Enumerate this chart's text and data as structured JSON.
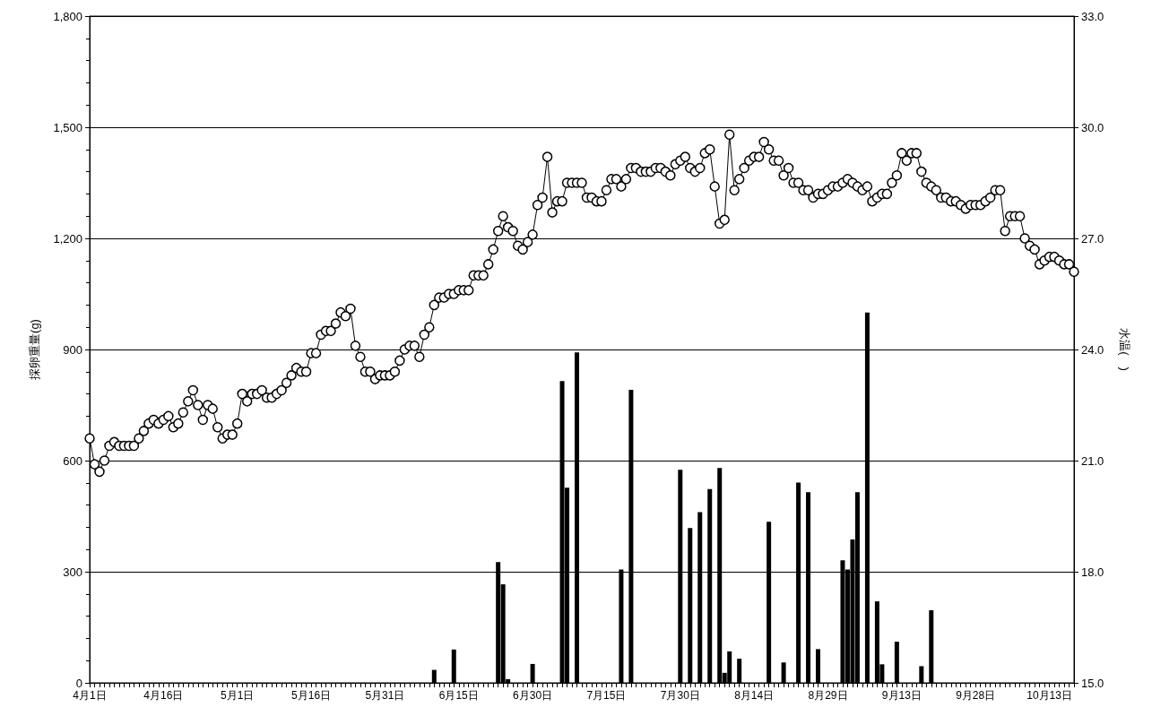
{
  "chart_data": {
    "type": "bar",
    "ylabel": "採卵重量(g)",
    "y2label": "水温(　)",
    "x": [
      "--04-01",
      "--04-02",
      "--04-03",
      "--04-04",
      "--04-05",
      "--04-06",
      "--04-07",
      "--04-08",
      "--04-09",
      "--04-10",
      "--04-11",
      "--04-12",
      "--04-13",
      "--04-14",
      "--04-15",
      "--04-16",
      "--04-17",
      "--04-18",
      "--04-19",
      "--04-20",
      "--04-21",
      "--04-22",
      "--04-23",
      "--04-24",
      "--04-25",
      "--04-26",
      "--04-27",
      "--04-28",
      "--04-29",
      "--04-30",
      "--05-01",
      "--05-02",
      "--05-03",
      "--05-04",
      "--05-05",
      "--05-06",
      "--05-07",
      "--05-08",
      "--05-09",
      "--05-10",
      "--05-11",
      "--05-12",
      "--05-13",
      "--05-14",
      "--05-15",
      "--05-16",
      "--05-17",
      "--05-18",
      "--05-19",
      "--05-20",
      "--05-21",
      "--05-22",
      "--05-23",
      "--05-24",
      "--05-25",
      "--05-26",
      "--05-27",
      "--05-28",
      "--05-29",
      "--05-30",
      "--05-31",
      "--06-01",
      "--06-02",
      "--06-03",
      "--06-04",
      "--06-05",
      "--06-06",
      "--06-07",
      "--06-08",
      "--06-09",
      "--06-10",
      "--06-11",
      "--06-12",
      "--06-13",
      "--06-14",
      "--06-15",
      "--06-16",
      "--06-17",
      "--06-18",
      "--06-19",
      "--06-20",
      "--06-21",
      "--06-22",
      "--06-23",
      "--06-24",
      "--06-25",
      "--06-26",
      "--06-27",
      "--06-28",
      "--06-29",
      "--06-30",
      "--07-01",
      "--07-02",
      "--07-03",
      "--07-04",
      "--07-05",
      "--07-06",
      "--07-07",
      "--07-08",
      "--07-09",
      "--07-10",
      "--07-11",
      "--07-12",
      "--07-13",
      "--07-14",
      "--07-15",
      "--07-16",
      "--07-17",
      "--07-18",
      "--07-19",
      "--07-20",
      "--07-21",
      "--07-22",
      "--07-23",
      "--07-24",
      "--07-25",
      "--07-26",
      "--07-27",
      "--07-28",
      "--07-29",
      "--07-30",
      "--07-31",
      "--08-01",
      "--08-02",
      "--08-03",
      "--08-04",
      "--08-05",
      "--08-06",
      "--08-07",
      "--08-08",
      "--08-09",
      "--08-10",
      "--08-11",
      "--08-12",
      "--08-13",
      "--08-14",
      "--08-15",
      "--08-16",
      "--08-17",
      "--08-18",
      "--08-19",
      "--08-20",
      "--08-21",
      "--08-22",
      "--08-23",
      "--08-24",
      "--08-25",
      "--08-26",
      "--08-27",
      "--08-28",
      "--08-29",
      "--08-30",
      "--08-31",
      "--09-01",
      "--09-02",
      "--09-03",
      "--09-04",
      "--09-05",
      "--09-06",
      "--09-07",
      "--09-08",
      "--09-09",
      "--09-10",
      "--09-11",
      "--09-12",
      "--09-13",
      "--09-14",
      "--09-15",
      "--09-16",
      "--09-17",
      "--09-18",
      "--09-19",
      "--09-20",
      "--09-21",
      "--09-22",
      "--09-23",
      "--09-24",
      "--09-25",
      "--09-26",
      "--09-27",
      "--09-28",
      "--09-29",
      "--09-30",
      "--10-01",
      "--10-02",
      "--10-03",
      "--10-04",
      "--10-05",
      "--10-06",
      "--10-07",
      "--10-08",
      "--10-09",
      "--10-10",
      "--10-11",
      "--10-12",
      "--10-13",
      "--10-14",
      "--10-15",
      "--10-16",
      "--10-17",
      "--10-18"
    ],
    "xlim": [
      "--04-01",
      "--10-18"
    ],
    "xticks": [
      {
        "value": "--04-01",
        "label": "4月1日"
      },
      {
        "value": "--04-16",
        "label": "4月16日"
      },
      {
        "value": "--05-01",
        "label": "5月1日"
      },
      {
        "value": "--05-16",
        "label": "5月16日"
      },
      {
        "value": "--05-31",
        "label": "5月31日"
      },
      {
        "value": "--06-15",
        "label": "6月15日"
      },
      {
        "value": "--06-30",
        "label": "6月30日"
      },
      {
        "value": "--07-15",
        "label": "7月15日"
      },
      {
        "value": "--07-30",
        "label": "7月30日"
      },
      {
        "value": "--08-14",
        "label": "8月14日"
      },
      {
        "value": "--08-29",
        "label": "8月29日"
      },
      {
        "value": "--09-13",
        "label": "9月13日"
      },
      {
        "value": "--09-28",
        "label": "9月28日"
      },
      {
        "value": "--10-13",
        "label": "10月13日"
      }
    ],
    "ylim": [
      0,
      1800
    ],
    "yticks": [
      0,
      300,
      600,
      900,
      {
        "value": 1200,
        "label": "1,200"
      },
      {
        "value": 1500,
        "label": "1,500"
      },
      {
        "value": 1800,
        "label": "1,800"
      }
    ],
    "y2lim": [
      15,
      33
    ],
    "y2ticks": [
      {
        "value": 15,
        "label": "15.0"
      },
      {
        "value": 18,
        "label": "18.0"
      },
      {
        "value": 21,
        "label": "21.0"
      },
      {
        "value": 24,
        "label": "24.0"
      },
      {
        "value": 27,
        "label": "27.0"
      },
      {
        "value": 30,
        "label": "30.0"
      },
      {
        "value": 33,
        "label": "33.0"
      }
    ],
    "grid": "y",
    "marker": "circle",
    "line_style": "solid",
    "series": [
      {
        "color": "#000000",
        "x": [
          "--06-10",
          "--06-14",
          "--06-23",
          "--06-24",
          "--06-25",
          "--06-30",
          "--07-06",
          "--07-07",
          "--07-09",
          "--07-18",
          "--07-20",
          "--07-30",
          "--08-01",
          "--08-03",
          "--08-05",
          "--08-07",
          "--08-08",
          "--08-09",
          "--08-11",
          "--08-17",
          "--08-20",
          "--08-23",
          "--08-25",
          "--08-27",
          "--09-01",
          "--09-02",
          "--09-03",
          "--09-04",
          "--09-06",
          "--09-08",
          "--09-09",
          "--09-12",
          "--09-17",
          "--09-19"
        ],
        "values": [
          35,
          90,
          326,
          266,
          10,
          51,
          815,
          527,
          892,
          306,
          791,
          575,
          418,
          461,
          523,
          580,
          27,
          85,
          65,
          435,
          55,
          541,
          515,
          91,
          331,
          306,
          387,
          515,
          1000,
          220,
          50,
          111,
          45,
          196
        ]
      },
      {
        "type": "line",
        "axis": "y2",
        "color": "#000000",
        "values": [
          21.6,
          20.9,
          20.7,
          21.0,
          21.4,
          21.5,
          21.4,
          21.4,
          21.4,
          21.4,
          21.6,
          21.8,
          22.0,
          22.1,
          22.0,
          22.1,
          22.2,
          21.9,
          22.0,
          22.3,
          22.6,
          22.9,
          22.5,
          22.1,
          22.5,
          22.4,
          21.9,
          21.6,
          21.7,
          21.7,
          22.0,
          22.8,
          22.6,
          22.8,
          22.8,
          22.9,
          22.7,
          22.7,
          22.8,
          22.9,
          23.1,
          23.3,
          23.5,
          23.4,
          23.4,
          23.9,
          23.9,
          24.4,
          24.5,
          24.5,
          24.7,
          25.0,
          24.9,
          25.1,
          24.1,
          23.8,
          23.4,
          23.4,
          23.2,
          23.3,
          23.3,
          23.3,
          23.4,
          23.7,
          24.0,
          24.1,
          24.1,
          23.8,
          24.4,
          24.6,
          25.2,
          25.4,
          25.4,
          25.5,
          25.5,
          25.6,
          25.6,
          25.6,
          26.0,
          26.0,
          26.0,
          26.3,
          26.7,
          27.2,
          27.6,
          27.3,
          27.2,
          26.8,
          26.7,
          26.9,
          27.1,
          27.9,
          28.1,
          29.2,
          27.7,
          28.0,
          28.0,
          28.5,
          28.5,
          28.5,
          28.5,
          28.1,
          28.1,
          28.0,
          28.0,
          28.3,
          28.6,
          28.6,
          28.4,
          28.6,
          28.9,
          28.9,
          28.8,
          28.8,
          28.8,
          28.9,
          28.9,
          28.8,
          28.7,
          29.0,
          29.1,
          29.2,
          28.9,
          28.8,
          28.9,
          29.3,
          29.4,
          28.4,
          27.4,
          27.5,
          29.8,
          28.3,
          28.6,
          28.9,
          29.1,
          29.2,
          29.2,
          29.6,
          29.4,
          29.1,
          29.1,
          28.7,
          28.9,
          28.5,
          28.5,
          28.3,
          28.3,
          28.1,
          28.2,
          28.2,
          28.3,
          28.4,
          28.4,
          28.5,
          28.6,
          28.5,
          28.4,
          28.3,
          28.4,
          28.0,
          28.1,
          28.2,
          28.2,
          28.5,
          28.7,
          29.3,
          29.1,
          29.3,
          29.3,
          28.8,
          28.5,
          28.4,
          28.3,
          28.1,
          28.1,
          28.0,
          28.0,
          27.9,
          27.8,
          27.9,
          27.9,
          27.9,
          28.0,
          28.1,
          28.3,
          28.3,
          27.2,
          27.6,
          27.6,
          27.6,
          27.0,
          26.8,
          26.7,
          26.3,
          26.4,
          26.5,
          26.5,
          26.4,
          26.3,
          26.3,
          26.1
        ]
      }
    ]
  }
}
